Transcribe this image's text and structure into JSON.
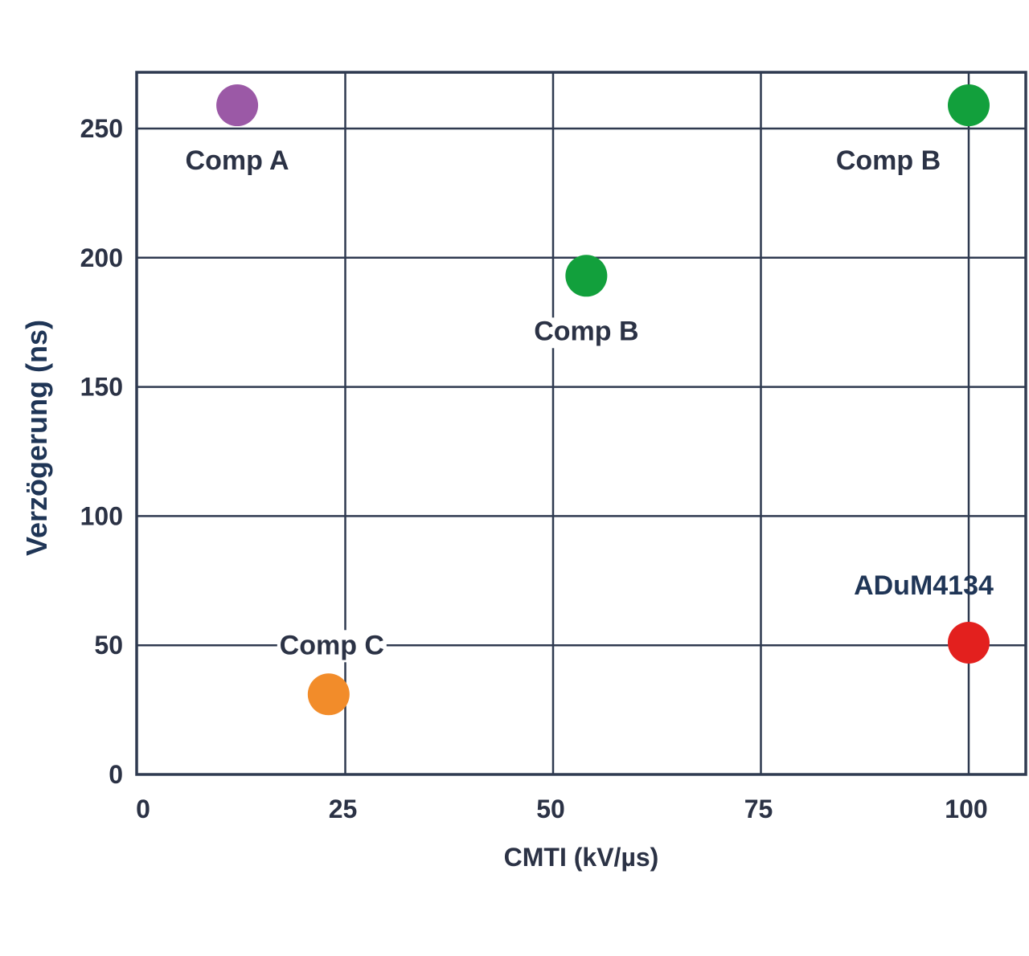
{
  "chart_data": {
    "type": "scatter",
    "title": "",
    "xlabel": "CMTI (kV/µs)",
    "ylabel": "Verzögerung (ns)",
    "xlim": [
      0,
      107
    ],
    "ylim": [
      0,
      272
    ],
    "x_ticks": [
      0,
      25,
      50,
      75,
      100
    ],
    "y_ticks": [
      0,
      50,
      100,
      150,
      200,
      250
    ],
    "grid": true,
    "legend": "none",
    "points": [
      {
        "label": "Comp A",
        "x": 12,
        "y": 259,
        "color": "#9b59a6",
        "label_position": "below"
      },
      {
        "label": "Comp B",
        "x": 100,
        "y": 259,
        "color": "#12a03c",
        "label_position": "below-left"
      },
      {
        "label": "Comp B",
        "x": 54,
        "y": 193,
        "color": "#12a03c",
        "label_position": "below"
      },
      {
        "label": "Comp C",
        "x": 23,
        "y": 31,
        "color": "#f28c2a",
        "label_position": "above"
      },
      {
        "label": "ADuM4134",
        "x": 100,
        "y": 51,
        "color": "#e3201e",
        "label_position": "above-left"
      }
    ]
  }
}
